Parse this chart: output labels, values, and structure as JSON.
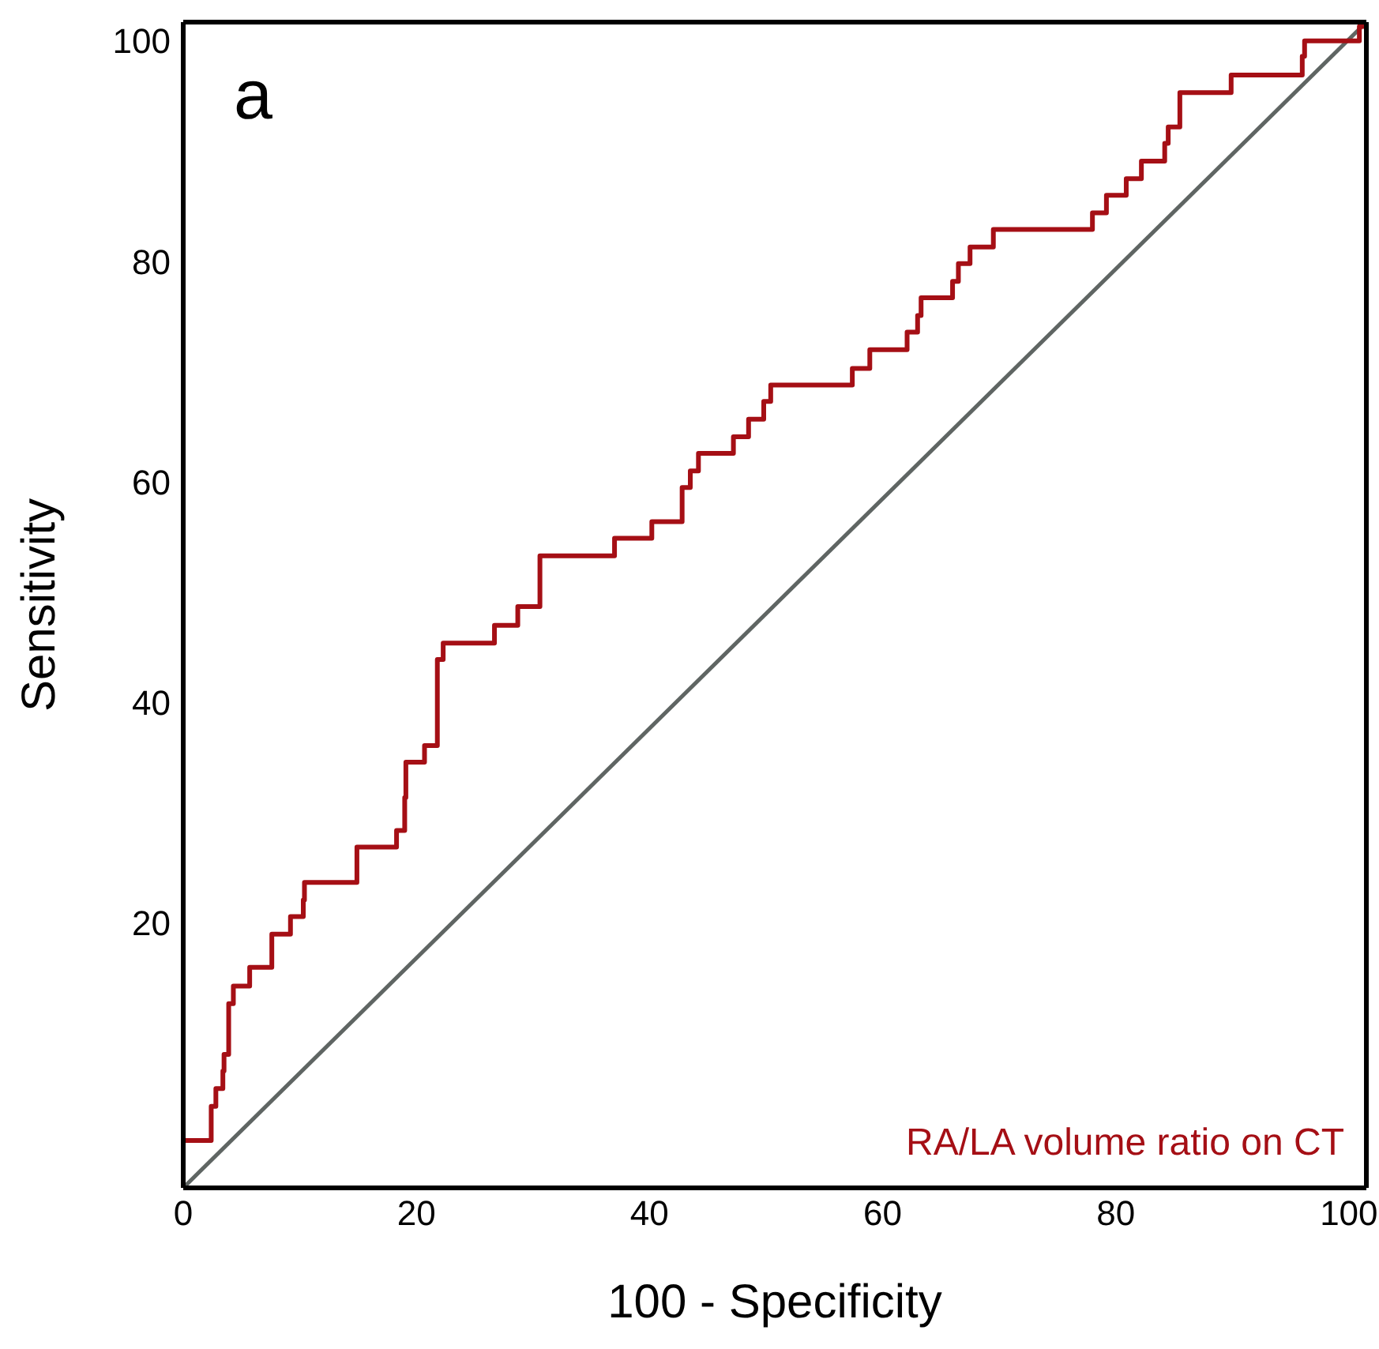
{
  "chart_data": {
    "type": "step",
    "xlabel": "100 - Specificity",
    "ylabel": "Sensitivity",
    "xlim": [
      0,
      101.5
    ],
    "ylim": [
      -4,
      101.7
    ],
    "xticks": [
      0,
      20,
      40,
      60,
      80,
      100
    ],
    "yticks": [
      20,
      40,
      60,
      80,
      100
    ],
    "legend": "bottom right",
    "marker": "none",
    "line_style": "solid",
    "annotations": [
      "a"
    ],
    "series": [
      {
        "name": "RA/LA volume ratio on CT",
        "color": "#a50f15",
        "type": "step",
        "x": [
          0,
          0,
          2.4,
          2.8,
          3.4,
          3.5,
          3.9,
          4.3,
          5.7,
          7.6,
          9.2,
          10.3,
          10.4,
          14.9,
          18.3,
          19.0,
          19.1,
          20.7,
          21.8,
          22.3,
          26.7,
          28.7,
          30.6,
          37.0,
          40.2,
          42.8,
          43.5,
          44.2,
          47.2,
          48.5,
          49.8,
          50.4,
          57.4,
          58.9,
          62.1,
          63.0,
          63.3,
          66.0,
          66.5,
          67.5,
          69.5,
          78.0,
          79.2,
          80.9,
          82.2,
          84.2,
          84.5,
          85.5,
          89.9,
          96.0,
          96.2,
          100.9,
          101.5
        ],
        "values": [
          -4.0,
          0.3,
          3.4,
          5.0,
          6.6,
          8.1,
          12.7,
          14.3,
          16.0,
          19.0,
          20.6,
          22.1,
          23.7,
          26.9,
          28.4,
          31.4,
          34.6,
          36.1,
          43.9,
          45.4,
          47.0,
          48.7,
          53.3,
          54.9,
          56.4,
          59.5,
          61.0,
          62.6,
          64.1,
          65.7,
          67.3,
          68.8,
          70.3,
          72.0,
          73.6,
          75.1,
          76.7,
          78.2,
          79.8,
          81.3,
          82.9,
          84.4,
          86.0,
          87.5,
          89.1,
          90.7,
          92.2,
          95.3,
          96.9,
          98.6,
          100.0,
          101.3,
          101.7
        ]
      },
      {
        "color": "#5f6563",
        "type": "line",
        "x": [
          0,
          101.5
        ],
        "values": [
          -4,
          101.7
        ]
      }
    ]
  }
}
